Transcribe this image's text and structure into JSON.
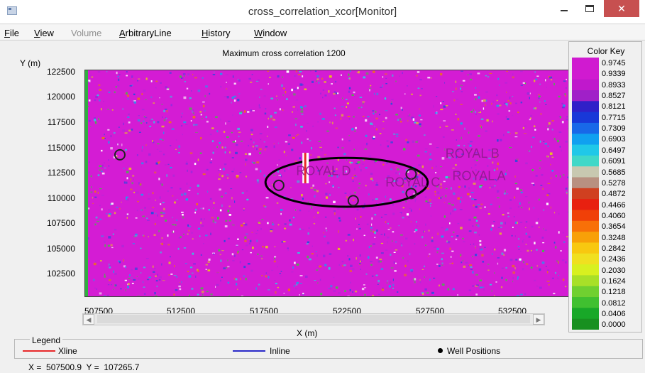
{
  "window": {
    "title": "cross_correlation_xcor[Monitor]",
    "close_glyph": "✕"
  },
  "menu": [
    {
      "label": "File",
      "underline": "F",
      "rest": "ile",
      "enabled": true
    },
    {
      "label": "View",
      "underline": "V",
      "rest": "iew",
      "enabled": true
    },
    {
      "label": "Volume",
      "underline": "",
      "rest": "Volume",
      "enabled": false
    },
    {
      "label": "ArbitraryLine",
      "underline": "A",
      "rest": "rbitraryLine",
      "enabled": true
    },
    {
      "label": "History",
      "underline": "H",
      "rest": "istory",
      "enabled": true
    },
    {
      "label": "Window",
      "underline": "W",
      "rest": "indow",
      "enabled": true
    }
  ],
  "map": {
    "title": "Maximum cross correlation 1200",
    "x_axis_label": "X (m)",
    "y_axis_label": "Y (m)",
    "x_ticks": [
      "507500",
      "512500",
      "517500",
      "522500",
      "527500",
      "532500"
    ],
    "y_ticks": [
      "122500",
      "120000",
      "117500",
      "115000",
      "112500",
      "110000",
      "107500",
      "105000",
      "102500"
    ],
    "x_range": [
      506800,
      536000
    ],
    "y_range": [
      100600,
      122800
    ],
    "background_color": "#d41cd4",
    "wells": [
      {
        "name": "ROYAL D",
        "x": 521200,
        "y": 112500
      },
      {
        "name": "ROYAL B",
        "x": 530200,
        "y": 114200
      },
      {
        "name": "ROYAL A",
        "x": 530600,
        "y": 112000
      },
      {
        "name": "ROYAL C",
        "x": 526600,
        "y": 111400
      }
    ],
    "well_markers": [
      {
        "x": 518500,
        "y": 111500
      },
      {
        "x": 523000,
        "y": 110000
      },
      {
        "x": 526500,
        "y": 112600
      },
      {
        "x": 526500,
        "y": 110700
      },
      {
        "x": 508900,
        "y": 114500
      }
    ],
    "highlight_ellipse": {
      "cx": 522600,
      "cy": 111800,
      "rx": 4900,
      "ry": 2400
    },
    "xline_marker": {
      "x": 520100,
      "y_from": 111700,
      "y_to": 114700,
      "color": "#e8282a"
    }
  },
  "color_key": {
    "title": "Color Key",
    "labels": [
      "0.9745",
      "0.9339",
      "0.8933",
      "0.8527",
      "0.8121",
      "0.7715",
      "0.7309",
      "0.6903",
      "0.6497",
      "0.6091",
      "0.5685",
      "0.5278",
      "0.4872",
      "0.4466",
      "0.4060",
      "0.3654",
      "0.3248",
      "0.2842",
      "0.2436",
      "0.2030",
      "0.1624",
      "0.1218",
      "0.0812",
      "0.0406",
      "0.0000"
    ],
    "colors": [
      "#d01ad0",
      "#d01ad0",
      "#c018cc",
      "#a020c8",
      "#3020c8",
      "#1838d8",
      "#1868e8",
      "#10a0f0",
      "#20c8e8",
      "#40d8c8",
      "#c8c8b0",
      "#b89080",
      "#d04020",
      "#e82010",
      "#f04008",
      "#f87008",
      "#f8a008",
      "#f8c810",
      "#f0e020",
      "#d8f020",
      "#a8e028",
      "#70d030",
      "#40c030",
      "#18a828",
      "#189020"
    ]
  },
  "legend": {
    "title": "Legend",
    "items": [
      {
        "label": "Xline",
        "color": "#e8282a"
      },
      {
        "label": "Inline",
        "color": "#2a2ac8"
      },
      {
        "label": "Well Positions",
        "color": "#000000"
      }
    ]
  },
  "status": {
    "x_label": "X =",
    "x_value": "507500.9",
    "y_label": "Y =",
    "y_value": "107265.7"
  }
}
